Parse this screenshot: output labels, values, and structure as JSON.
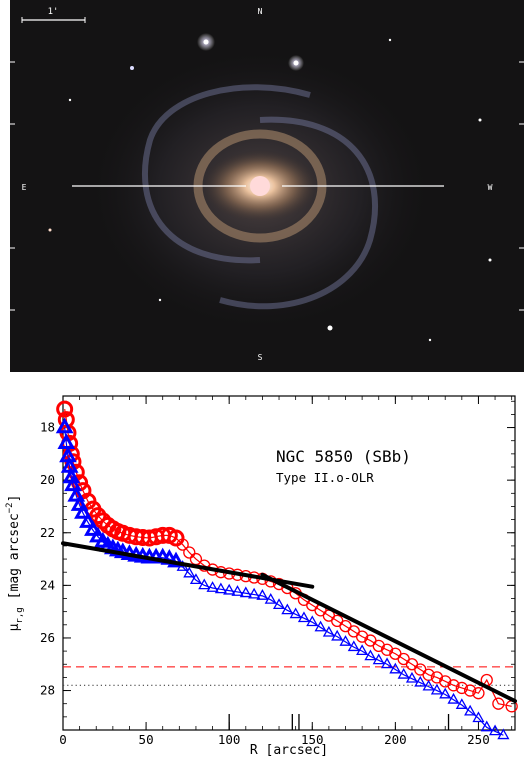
{
  "image": {
    "scale_bar_label": "1'",
    "compass": {
      "n": "N",
      "e": "E",
      "w": "W",
      "s": "S"
    }
  },
  "chart_data": {
    "type": "scatter",
    "title": "NGC 5850 (SBb)",
    "subtitle": "Type II.o-OLR",
    "xlabel": "R [arcsec]",
    "ylabel_prefix": "μ",
    "ylabel_sub": "r,g",
    "ylabel_unit": "[mag arcsec",
    "ylabel_exp": "−2",
    "ylabel_close": "]",
    "xlim": [
      0,
      272
    ],
    "ylim": [
      29.5,
      16.8
    ],
    "y_inverted": true,
    "x_ticks": [
      0,
      50,
      100,
      150,
      200,
      250
    ],
    "y_ticks": [
      18,
      20,
      22,
      24,
      26,
      28
    ],
    "break_markers_x": [
      100,
      138,
      142,
      232
    ],
    "colors": {
      "r_band": "#ff0000",
      "g_band": "#0000ff",
      "fit": "#000000",
      "dotted": "#444444"
    },
    "series": [
      {
        "band": "r",
        "marker": "circle",
        "x": [
          1,
          2,
          3,
          4,
          5,
          6,
          8,
          10,
          12,
          15,
          18,
          21,
          24,
          27,
          30,
          33,
          36,
          40,
          44,
          48,
          52,
          56,
          60,
          64,
          68,
          72,
          76,
          80,
          85,
          90,
          95,
          100,
          105,
          110,
          115,
          120,
          125,
          130,
          135,
          140,
          145,
          150,
          155,
          160,
          165,
          170,
          175,
          180,
          185,
          190,
          195,
          200,
          205,
          210,
          215,
          220,
          225,
          230,
          235,
          240,
          245,
          250,
          255,
          262,
          270
        ],
        "y": [
          17.3,
          17.7,
          18.2,
          18.6,
          19.0,
          19.3,
          19.7,
          20.1,
          20.4,
          20.8,
          21.1,
          21.35,
          21.55,
          21.72,
          21.85,
          21.95,
          22.02,
          22.1,
          22.15,
          22.18,
          22.2,
          22.15,
          22.1,
          22.1,
          22.2,
          22.45,
          22.75,
          23.0,
          23.25,
          23.4,
          23.5,
          23.55,
          23.6,
          23.65,
          23.7,
          23.75,
          23.85,
          23.95,
          24.1,
          24.3,
          24.55,
          24.75,
          24.95,
          25.15,
          25.35,
          25.55,
          25.75,
          25.95,
          26.1,
          26.3,
          26.45,
          26.6,
          26.8,
          27.0,
          27.2,
          27.4,
          27.5,
          27.65,
          27.8,
          27.9,
          28.0,
          28.1,
          27.6,
          28.5,
          28.6
        ]
      },
      {
        "band": "g",
        "marker": "triangle",
        "x": [
          1,
          2,
          3,
          4,
          5,
          6,
          8,
          10,
          12,
          15,
          18,
          21,
          24,
          27,
          30,
          33,
          36,
          40,
          44,
          48,
          52,
          56,
          60,
          64,
          68,
          72,
          76,
          80,
          85,
          90,
          95,
          100,
          105,
          110,
          115,
          120,
          125,
          130,
          135,
          140,
          145,
          150,
          155,
          160,
          165,
          170,
          175,
          180,
          185,
          190,
          195,
          200,
          205,
          210,
          215,
          220,
          225,
          230,
          235,
          240,
          245,
          250,
          255,
          260,
          265
        ],
        "y": [
          18.0,
          18.6,
          19.1,
          19.5,
          19.9,
          20.2,
          20.6,
          20.95,
          21.25,
          21.6,
          21.9,
          22.15,
          22.35,
          22.5,
          22.6,
          22.68,
          22.75,
          22.82,
          22.88,
          22.92,
          22.95,
          22.95,
          22.95,
          23.0,
          23.1,
          23.3,
          23.55,
          23.8,
          24.0,
          24.1,
          24.15,
          24.2,
          24.25,
          24.3,
          24.35,
          24.4,
          24.55,
          24.75,
          24.95,
          25.1,
          25.25,
          25.4,
          25.6,
          25.8,
          25.95,
          26.15,
          26.35,
          26.5,
          26.7,
          26.85,
          27.0,
          27.2,
          27.4,
          27.55,
          27.7,
          27.85,
          28.0,
          28.15,
          28.35,
          28.55,
          28.8,
          29.05,
          29.4,
          29.55,
          29.7
        ]
      }
    ],
    "fits": [
      {
        "x": [
          0,
          150
        ],
        "y": [
          22.4,
          24.05
        ]
      },
      {
        "x": [
          120,
          272
        ],
        "y": [
          23.6,
          28.4
        ]
      }
    ],
    "sky_levels": [
      {
        "band": "r",
        "y": 27.1,
        "style": "dashed"
      },
      {
        "band": "g",
        "y": 27.8,
        "style": "dotted"
      }
    ]
  }
}
